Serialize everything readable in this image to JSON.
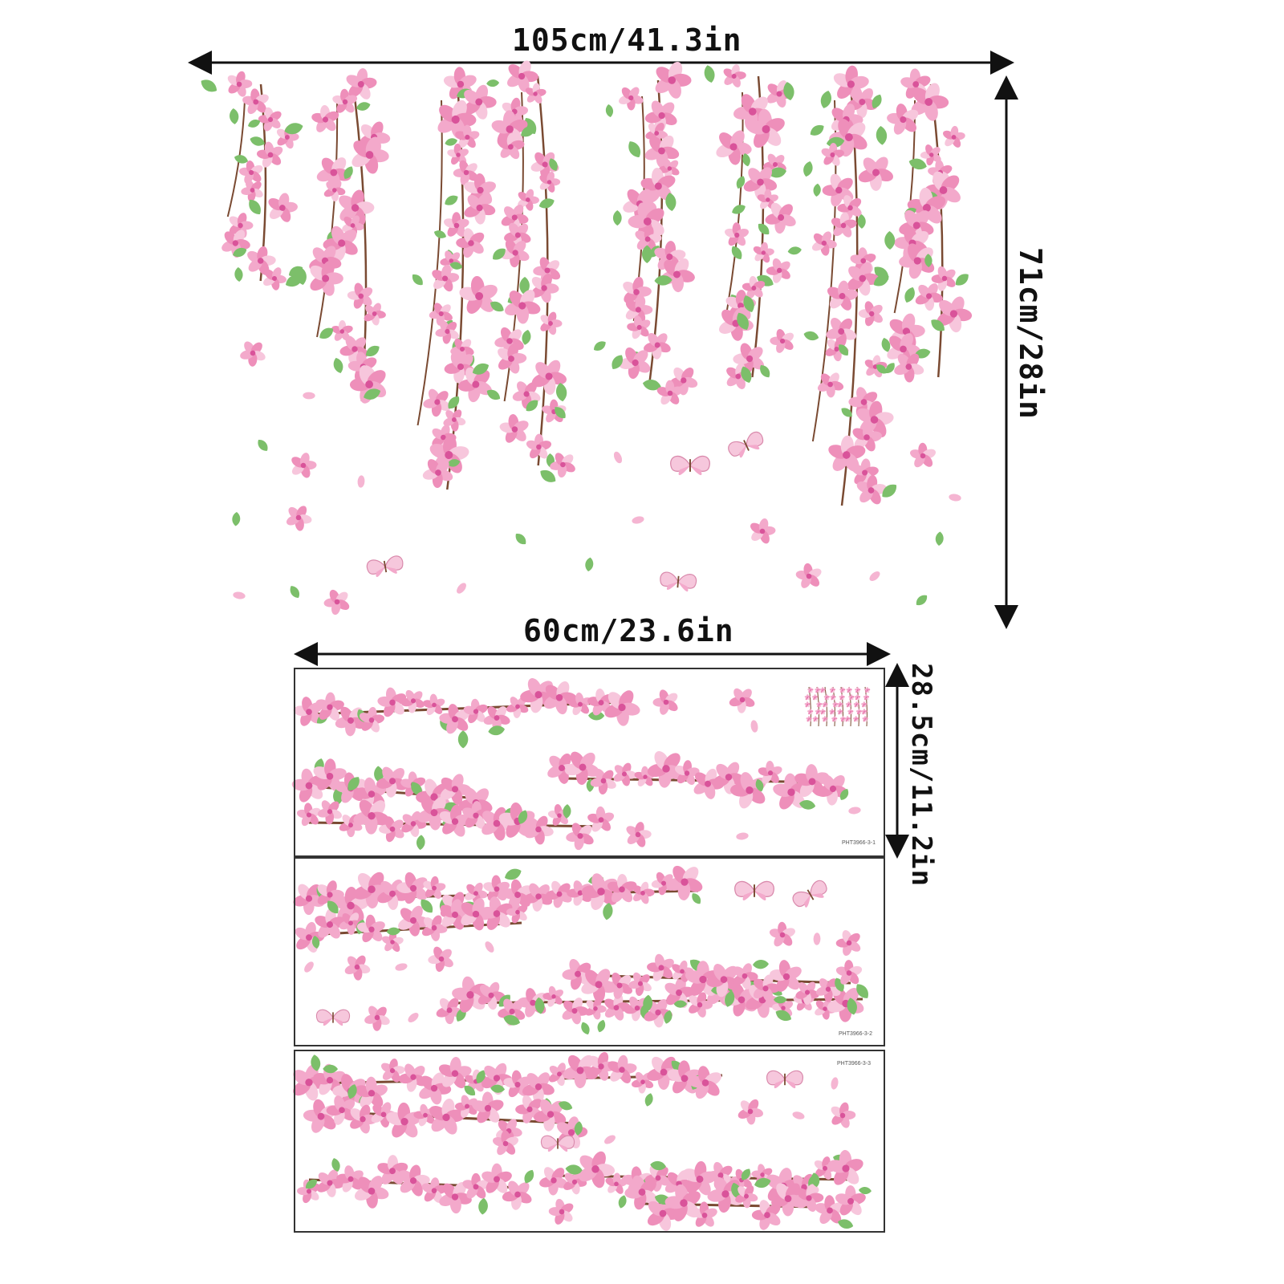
{
  "dimensions": {
    "top_width": "105cm/41.3in",
    "top_height": "71cm/28in",
    "sheet_width": "60cm/23.6in",
    "sheet_height": "28.5cm/11.2in"
  },
  "sheets": [
    {
      "code": "PHT3966-3-1"
    },
    {
      "code": "PHT3966-3-2"
    },
    {
      "code": "PHT3966-3-3"
    }
  ],
  "colors": {
    "blossom_light": "#f7c6dc",
    "blossom_mid": "#ee8fba",
    "blossom_dark": "#d9539a",
    "leaf": "#7cbf6a",
    "branch": "#7a4a32",
    "arrow": "#111111"
  },
  "icons": [
    "blossom-icon",
    "leaf-icon",
    "butterfly-icon",
    "petal-icon"
  ]
}
